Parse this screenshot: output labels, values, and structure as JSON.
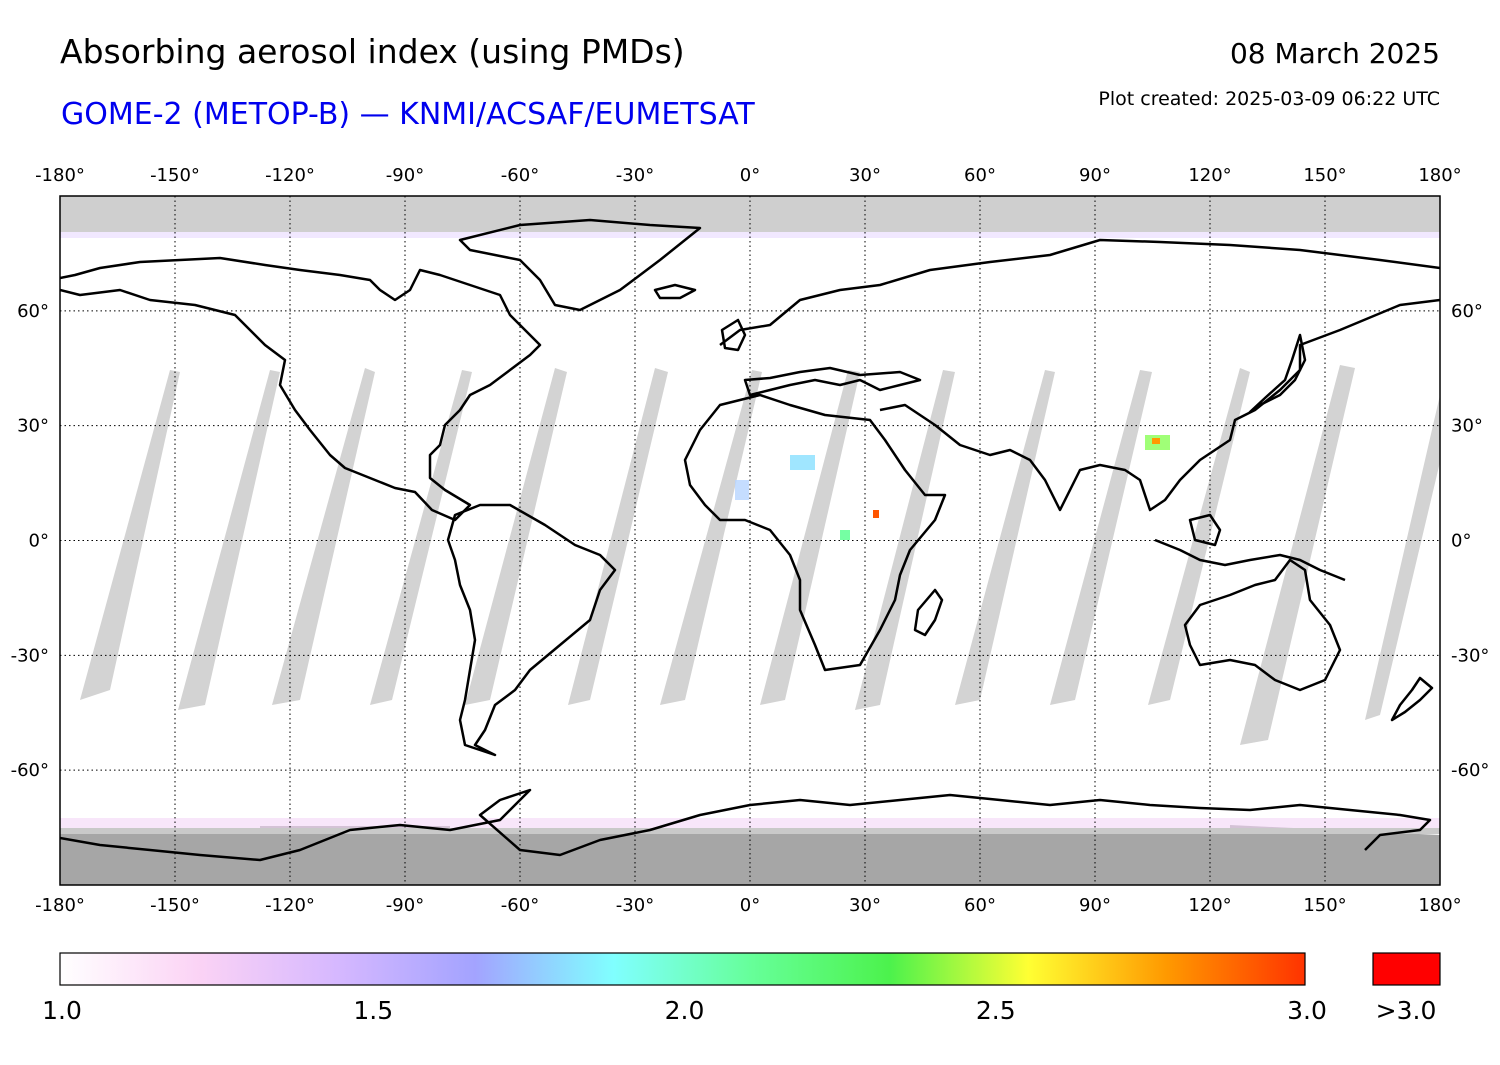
{
  "header": {
    "title": "Absorbing aerosol index (using PMDs)",
    "subtitle": "GOME-2 (METOP-B) — KNMI/ACSAF/EUMETSAT",
    "date": "08 March 2025",
    "plot_created": "Plot created: 2025-03-09 06:22 UTC"
  },
  "map": {
    "projection": "equirectangular",
    "lon_range": [
      -180,
      180
    ],
    "lat_range": [
      -90,
      90
    ],
    "lon_ticks": [
      -180,
      -150,
      -120,
      -90,
      -60,
      -30,
      0,
      30,
      60,
      90,
      120,
      150,
      180
    ],
    "lon_tick_labels": [
      "-180°",
      "-150°",
      "-120°",
      "-90°",
      "-60°",
      "-30°",
      "0°",
      "30°",
      "60°",
      "90°",
      "120°",
      "150°",
      "180°"
    ],
    "lat_ticks": [
      60,
      30,
      0,
      -30,
      -60
    ],
    "lat_tick_labels": [
      "60°",
      "30°",
      "0°",
      "-30°",
      "-60°"
    ],
    "gridlines": "dotted",
    "no_data_color": "#d3d3d3",
    "polar_no_data_color": "#a6a6a6",
    "coastline_color": "#000000"
  },
  "colorbar": {
    "min": 1.0,
    "max": 3.0,
    "tick_values": [
      1.0,
      1.5,
      2.0,
      2.5,
      3.0
    ],
    "tick_labels": [
      "1.0",
      "1.5",
      "2.0",
      "2.5",
      "3.0"
    ],
    "overflow_label": ">3.0",
    "overflow_color": "#ff0000",
    "stops": [
      "#ffffff",
      "#fbd3f5",
      "#d6b8ff",
      "#a3a3ff",
      "#80ffff",
      "#66ff99",
      "#4cf24c",
      "#ffff33",
      "#ff9900",
      "#ff3300"
    ]
  }
}
